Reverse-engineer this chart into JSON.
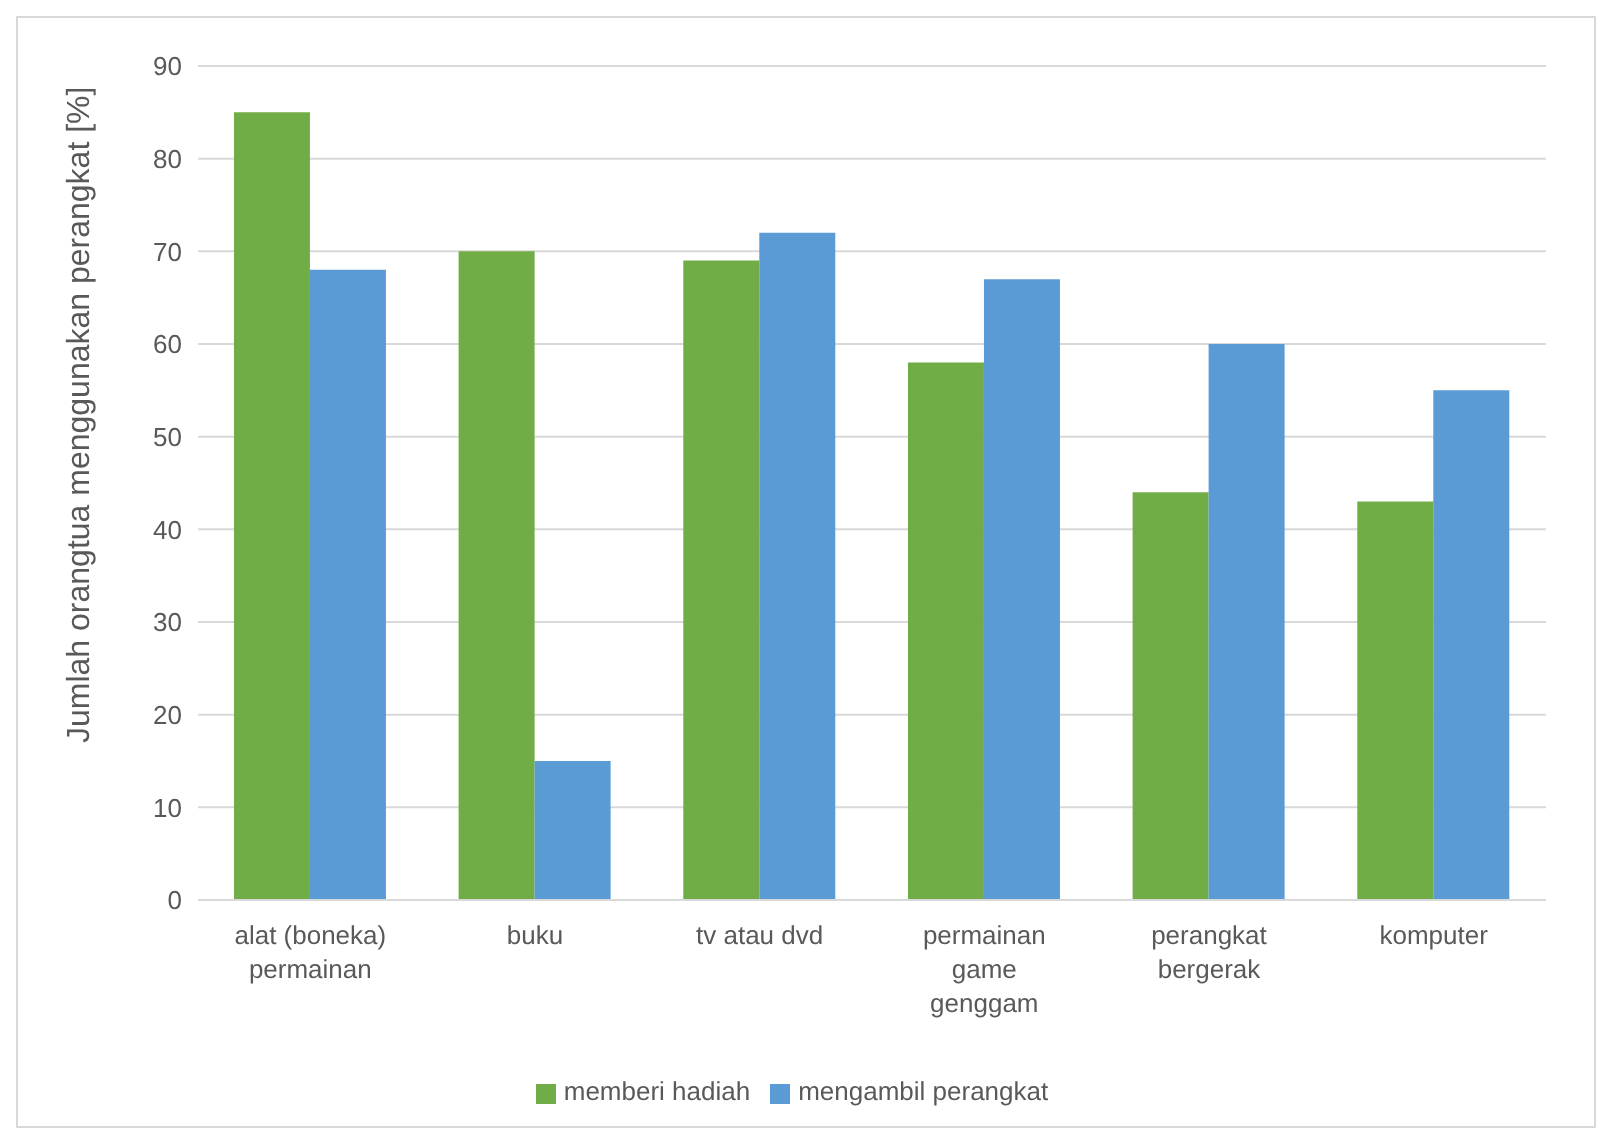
{
  "chart_data": {
    "type": "bar",
    "ylabel": "Jumlah orangtua menggunakan perangkat [%]",
    "categories": [
      "alat (boneka) permainan",
      "buku",
      "tv atau dvd",
      "permainan game genggam",
      "perangkat bergerak",
      "komputer"
    ],
    "series": [
      {
        "name": "memberi hadiah",
        "color": "#70ad47",
        "values": [
          85,
          70,
          69,
          58,
          44,
          43
        ]
      },
      {
        "name": "mengambil perangkat",
        "color": "#5b9bd5",
        "values": [
          68,
          15,
          72,
          67,
          60,
          55
        ]
      }
    ],
    "ylim": [
      0,
      90
    ],
    "yticks": [
      0,
      10,
      20,
      30,
      40,
      50,
      60,
      70,
      80,
      90
    ],
    "grid": "y",
    "legend": "bottom"
  }
}
